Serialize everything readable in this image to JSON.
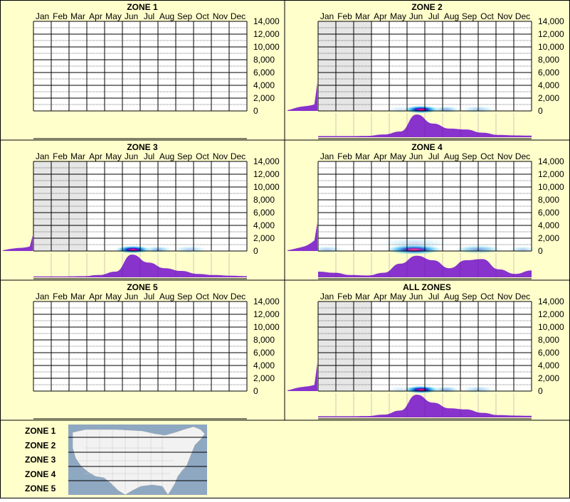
{
  "months": [
    "Jan",
    "Feb",
    "Mar",
    "Apr",
    "May",
    "Jun",
    "Jul",
    "Aug",
    "Sep",
    "Oct",
    "Nov",
    "Dec"
  ],
  "chart_data": [
    {
      "type": "heatmap",
      "title": "ZONE 1",
      "x_categories": [
        "Jan",
        "Feb",
        "Mar",
        "Apr",
        "May",
        "Jun",
        "Jul",
        "Aug",
        "Sep",
        "Oct",
        "Nov",
        "Dec"
      ],
      "y_ticks": [
        "14,000",
        "12,000",
        "10,000",
        "8,000",
        "6,000",
        "4,000",
        "2,000",
        "0"
      ],
      "ylim": [
        0,
        14000
      ],
      "shaded_months": [],
      "elevation_profile": [],
      "heat_spots": [],
      "monthly_density": []
    },
    {
      "type": "heatmap",
      "title": "ZONE 2",
      "x_categories": [
        "Jan",
        "Feb",
        "Mar",
        "Apr",
        "May",
        "Jun",
        "Jul",
        "Aug",
        "Sep",
        "Oct",
        "Nov",
        "Dec"
      ],
      "y_ticks": [
        "14,000",
        "12,000",
        "10,000",
        "8,000",
        "6,000",
        "4,000",
        "2,000",
        "0"
      ],
      "ylim": [
        0,
        14000
      ],
      "shaded_months": [
        "Jan",
        "Feb",
        "Mar"
      ],
      "elevation_profile": [
        0.05,
        0.1,
        0.17,
        0.23,
        0.28,
        0.31,
        0.34,
        0.36,
        0.4,
        0.46,
        1.0
      ],
      "heat_spots": [
        {
          "month": 5.8,
          "elev": 0,
          "spread": 1.0,
          "intensity": 1.0
        },
        {
          "month": 7.2,
          "elev": 0,
          "spread": 0.8,
          "intensity": 0.45
        },
        {
          "month": 9.0,
          "elev": 0,
          "spread": 1.0,
          "intensity": 0.3
        },
        {
          "month": 4.6,
          "elev": 0,
          "spread": 0.8,
          "intensity": 0.15
        }
      ],
      "monthly_density": [
        0.05,
        0.05,
        0.05,
        0.06,
        0.12,
        0.25,
        1.0,
        0.6,
        0.38,
        0.34,
        0.2,
        0.1,
        0.08,
        0.07
      ]
    },
    {
      "type": "heatmap",
      "title": "ZONE 3",
      "x_categories": [
        "Jan",
        "Feb",
        "Mar",
        "Apr",
        "May",
        "Jun",
        "Jul",
        "Aug",
        "Sep",
        "Oct",
        "Nov",
        "Dec"
      ],
      "y_ticks": [
        "14,000",
        "12,000",
        "10,000",
        "8,000",
        "6,000",
        "4,000",
        "2,000",
        "0"
      ],
      "ylim": [
        0,
        14000
      ],
      "shaded_months": [
        "Jan",
        "Feb",
        "Mar"
      ],
      "elevation_profile": [
        0.05,
        0.09,
        0.13,
        0.16,
        0.19,
        0.21,
        0.22,
        0.24,
        0.27,
        0.32,
        0.55
      ],
      "heat_spots": [
        {
          "month": 5.6,
          "elev": 0,
          "spread": 1.0,
          "intensity": 1.0
        },
        {
          "month": 7.0,
          "elev": 0,
          "spread": 0.8,
          "intensity": 0.45
        },
        {
          "month": 8.8,
          "elev": 0,
          "spread": 1.0,
          "intensity": 0.3
        }
      ],
      "monthly_density": [
        0.04,
        0.04,
        0.04,
        0.05,
        0.1,
        0.25,
        1.0,
        0.65,
        0.4,
        0.28,
        0.15,
        0.1,
        0.07,
        0.05
      ]
    },
    {
      "type": "heatmap",
      "title": "ZONE 4",
      "x_categories": [
        "Jan",
        "Feb",
        "Mar",
        "Apr",
        "May",
        "Jun",
        "Jul",
        "Aug",
        "Sep",
        "Oct",
        "Nov",
        "Dec"
      ],
      "y_ticks": [
        "14,000",
        "12,000",
        "10,000",
        "8,000",
        "6,000",
        "4,000",
        "2,000",
        "0"
      ],
      "ylim": [
        0,
        14000
      ],
      "shaded_months": [],
      "elevation_profile": [
        0.05,
        0.09,
        0.14,
        0.19,
        0.24,
        0.29,
        0.35,
        0.45,
        0.58,
        0.75,
        1.0
      ],
      "heat_spots": [
        {
          "month": 5.4,
          "elev": 0,
          "spread": 1.6,
          "intensity": 0.85
        },
        {
          "month": 9.0,
          "elev": 0,
          "spread": 1.4,
          "intensity": 0.55
        },
        {
          "month": 0.5,
          "elev": 0,
          "spread": 1.0,
          "intensity": 0.3
        },
        {
          "month": 5.4,
          "elev": 1000,
          "spread": 2.0,
          "intensity": 0.18
        },
        {
          "month": 11.5,
          "elev": 0,
          "spread": 0.8,
          "intensity": 0.3
        }
      ],
      "monthly_density": [
        0.25,
        0.2,
        0.1,
        0.08,
        0.2,
        0.6,
        0.95,
        0.75,
        0.4,
        0.75,
        0.8,
        0.35,
        0.15,
        0.3
      ]
    },
    {
      "type": "heatmap",
      "title": "ZONE 5",
      "x_categories": [
        "Jan",
        "Feb",
        "Mar",
        "Apr",
        "May",
        "Jun",
        "Jul",
        "Aug",
        "Sep",
        "Oct",
        "Nov",
        "Dec"
      ],
      "y_ticks": [
        "14,000",
        "12,000",
        "10,000",
        "8,000",
        "6,000",
        "4,000",
        "2,000",
        "0"
      ],
      "ylim": [
        0,
        14000
      ],
      "shaded_months": [],
      "elevation_profile": [],
      "heat_spots": [],
      "monthly_density": []
    },
    {
      "type": "heatmap",
      "title": "ALL ZONES",
      "x_categories": [
        "Jan",
        "Feb",
        "Mar",
        "Apr",
        "May",
        "Jun",
        "Jul",
        "Aug",
        "Sep",
        "Oct",
        "Nov",
        "Dec"
      ],
      "y_ticks": [
        "14,000",
        "12,000",
        "10,000",
        "8,000",
        "6,000",
        "4,000",
        "2,000",
        "0"
      ],
      "ylim": [
        0,
        14000
      ],
      "shaded_months": [
        "Jan",
        "Feb",
        "Mar"
      ],
      "elevation_profile": [
        0.05,
        0.1,
        0.16,
        0.22,
        0.26,
        0.29,
        0.32,
        0.34,
        0.38,
        0.44,
        1.0
      ],
      "heat_spots": [
        {
          "month": 5.8,
          "elev": 0,
          "spread": 1.0,
          "intensity": 1.0
        },
        {
          "month": 7.2,
          "elev": 0,
          "spread": 0.8,
          "intensity": 0.45
        },
        {
          "month": 9.0,
          "elev": 0,
          "spread": 1.0,
          "intensity": 0.3
        },
        {
          "month": 4.6,
          "elev": 0,
          "spread": 0.8,
          "intensity": 0.15
        }
      ],
      "monthly_density": [
        0.05,
        0.05,
        0.05,
        0.06,
        0.12,
        0.3,
        1.0,
        0.65,
        0.4,
        0.35,
        0.2,
        0.1,
        0.08,
        0.07
      ]
    }
  ],
  "legend": {
    "zone_labels": [
      "ZONE 1",
      "ZONE 2",
      "ZONE 3",
      "ZONE 4",
      "ZONE 5"
    ]
  },
  "colors": {
    "background": "#ffffcc",
    "frame": "#000000",
    "shade": "#e6e6e6",
    "fill": "#8833cc",
    "map_water": "#8fa8c2",
    "map_land": "#f2f2f2"
  }
}
